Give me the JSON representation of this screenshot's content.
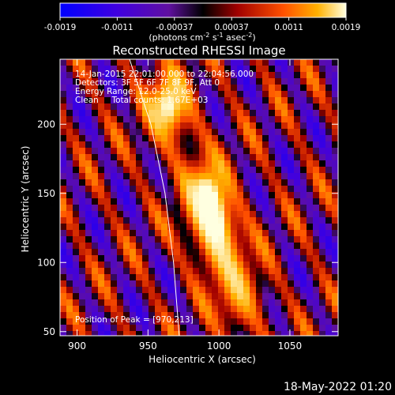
{
  "chart_data": {
    "type": "heatmap",
    "title": "Reconstructed RHESSI Image",
    "xlabel": "Heliocentric X (arcsec)",
    "ylabel": "Heliocentric Y (arcsec)",
    "xlim": [
      888,
      1084
    ],
    "ylim": [
      47,
      247
    ],
    "xticks": [
      900,
      950,
      1000,
      1050
    ],
    "yticks": [
      50,
      100,
      150,
      200
    ],
    "colorbar": {
      "ticks": [
        "-0.0019",
        "-0.0011",
        "-0.00037",
        "0.00037",
        "0.0011",
        "0.0019"
      ],
      "range": [
        -0.0019,
        0.0019
      ],
      "unit_main": "(photons cm",
      "unit_sup1": "-2",
      "unit_mid": " s",
      "unit_sup2": "-1",
      "unit_mid2": " asec",
      "unit_sup3": "-2",
      "unit_end": ")"
    },
    "annotations": {
      "time": "14-Jan-2015 22:01:00.000 to 22:04:56.000",
      "detectors": "Detectors: 3F 5F 6F 7F 8F 9F, Att 0",
      "energy": "Energy Range: 12.0-25.0 keV",
      "clean": "Clean     Total counts: 1.67E+03",
      "peak": "Position of Peak = [970,213]"
    },
    "peak": [
      970,
      213
    ],
    "limb_curve": {
      "points": [
        [
          937,
          247
        ],
        [
          952,
          200
        ],
        [
          962,
          150
        ],
        [
          968,
          100
        ],
        [
          972,
          47
        ]
      ]
    },
    "emission_sources": [
      {
        "x": 964,
        "y": 213,
        "amp": 1.0
      },
      {
        "x": 990,
        "y": 150,
        "amp": 0.95
      },
      {
        "x": 1000,
        "y": 115,
        "amp": 0.75
      },
      {
        "x": 1015,
        "y": 75,
        "amp": 0.7
      }
    ],
    "colors": {
      "cb_neg_low": "#0000ff",
      "cb_neg_mid": "#7000c0",
      "cb_zero": "#000000",
      "cb_pos_mid": "#ff4000",
      "cb_pos_high": "#ffffd0"
    }
  },
  "footer": {
    "date": "18-May-2022 01:20"
  }
}
